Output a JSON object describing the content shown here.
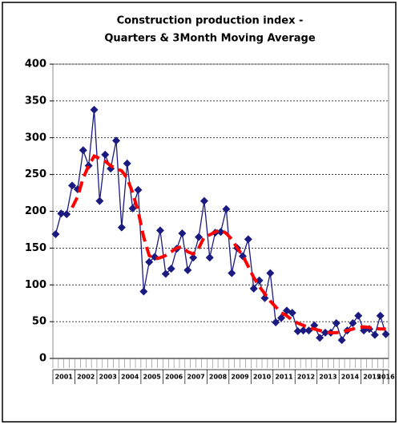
{
  "chart_data": {
    "type": "line",
    "title": [
      "Construction production index -",
      "Quarters & 3Month Moving Average"
    ],
    "categories": [
      null,
      null,
      null,
      null,
      null,
      null,
      null,
      null,
      null,
      null,
      null,
      null,
      null,
      null,
      null,
      null,
      null,
      null,
      null,
      null,
      null,
      null,
      null,
      null,
      null,
      null,
      null,
      null,
      null,
      null,
      null,
      null,
      null,
      null,
      null,
      null,
      null,
      null,
      null,
      null,
      null,
      null,
      null,
      null,
      null,
      null,
      null,
      null,
      null,
      null,
      null,
      null,
      null,
      null,
      null,
      null,
      null,
      null,
      null,
      null,
      null
    ],
    "year_labels": [
      "2001",
      "2002",
      "2003",
      "2004",
      "2005",
      "2006",
      "2007",
      "2008",
      "2009",
      "2010",
      "2011",
      "2012",
      "2013",
      "2014",
      "2015",
      "2016"
    ],
    "series": [
      {
        "name": "Quarters",
        "color": "#1a1a80",
        "values": [
          169,
          197,
          196,
          235,
          230,
          283,
          262,
          338,
          214,
          277,
          258,
          296,
          178,
          265,
          204,
          229,
          91,
          131,
          138,
          174,
          115,
          122,
          149,
          170,
          120,
          137,
          165,
          214,
          137,
          171,
          172,
          203,
          116,
          150,
          139,
          162,
          95,
          106,
          82,
          116,
          49,
          55,
          65,
          62,
          37,
          38,
          38,
          45,
          28,
          35,
          35,
          48,
          25,
          38,
          48,
          58,
          38,
          40,
          32,
          58,
          33
        ]
      },
      {
        "name": "3Month Moving Average",
        "color": "#ff0000",
        "values": [
          null,
          null,
          null,
          205,
          220,
          245,
          262,
          275,
          272,
          268,
          262,
          258,
          255,
          245,
          225,
          200,
          165,
          140,
          135,
          137,
          140,
          145,
          150,
          152,
          145,
          142,
          150,
          165,
          168,
          172,
          175,
          170,
          162,
          150,
          140,
          125,
          110,
          98,
          88,
          78,
          70,
          62,
          58,
          52,
          48,
          45,
          42,
          40,
          38,
          36,
          35,
          35,
          36,
          38,
          40,
          42,
          43,
          42,
          41,
          40,
          40
        ]
      }
    ],
    "ylim": [
      0,
      400
    ],
    "yticks": [
      0,
      50,
      100,
      150,
      200,
      250,
      300,
      350,
      400
    ],
    "grid": true
  }
}
